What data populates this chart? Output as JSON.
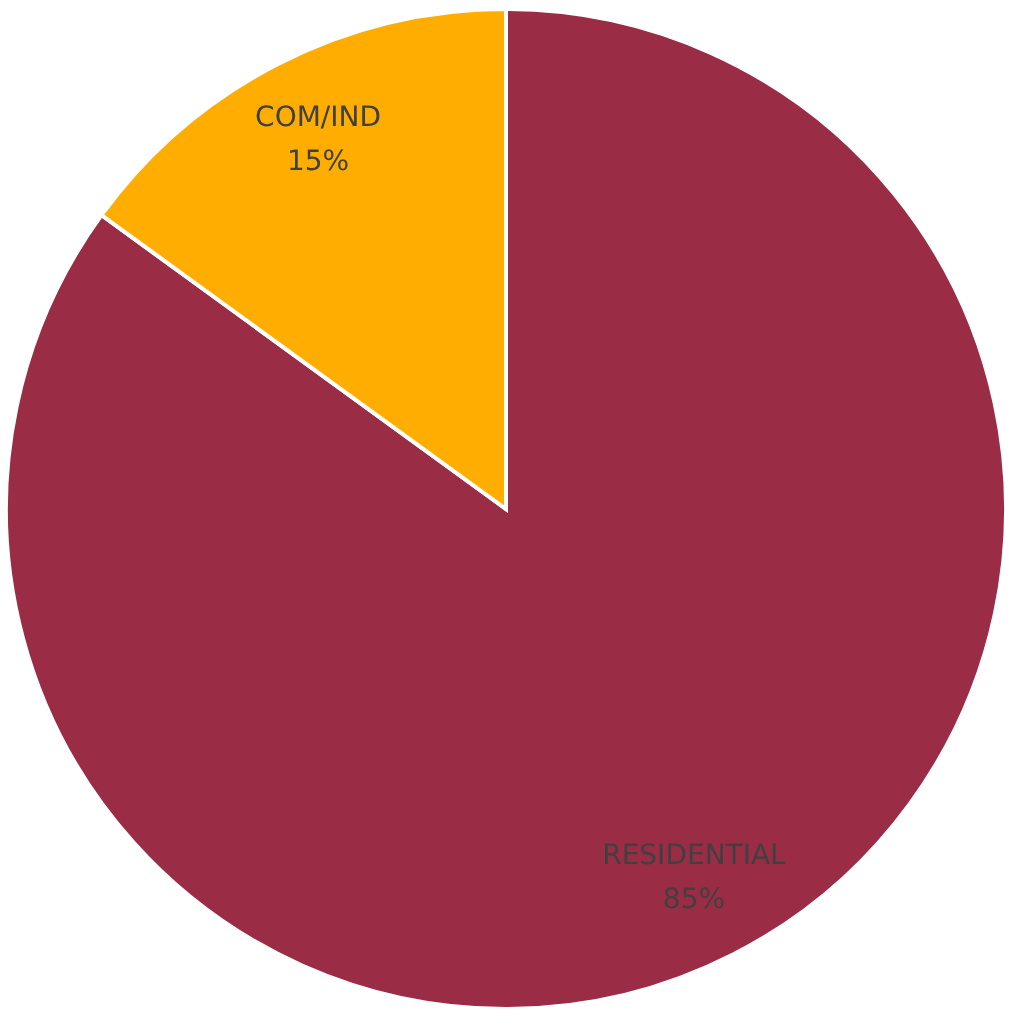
{
  "chart_data": {
    "type": "pie",
    "categories": [
      "RESIDENTIAL",
      "COM/IND"
    ],
    "values": [
      85,
      15
    ],
    "colors": [
      "#9b2c45",
      "#ffad00"
    ],
    "value_labels": [
      "85%",
      "15%"
    ],
    "legend": false
  }
}
